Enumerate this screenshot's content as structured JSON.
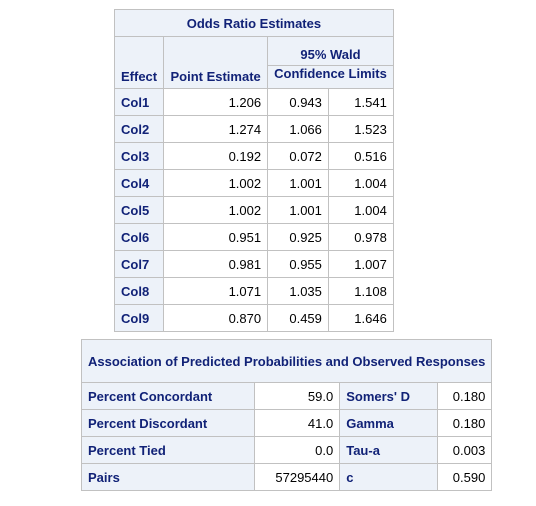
{
  "odds_ratio": {
    "title": "Odds Ratio Estimates",
    "headers": {
      "effect": "Effect",
      "point_estimate": "Point Estimate",
      "wald_line1": "95% Wald",
      "wald_line2": "Confidence Limits"
    },
    "rows": [
      {
        "effect": "Col1",
        "point": "1.206",
        "lower": "0.943",
        "upper": "1.541"
      },
      {
        "effect": "Col2",
        "point": "1.274",
        "lower": "1.066",
        "upper": "1.523"
      },
      {
        "effect": "Col3",
        "point": "0.192",
        "lower": "0.072",
        "upper": "0.516"
      },
      {
        "effect": "Col4",
        "point": "1.002",
        "lower": "1.001",
        "upper": "1.004"
      },
      {
        "effect": "Col5",
        "point": "1.002",
        "lower": "1.001",
        "upper": "1.004"
      },
      {
        "effect": "Col6",
        "point": "0.951",
        "lower": "0.925",
        "upper": "0.978"
      },
      {
        "effect": "Col7",
        "point": "0.981",
        "lower": "0.955",
        "upper": "1.007"
      },
      {
        "effect": "Col8",
        "point": "1.071",
        "lower": "1.035",
        "upper": "1.108"
      },
      {
        "effect": "Col9",
        "point": "0.870",
        "lower": "0.459",
        "upper": "1.646"
      }
    ]
  },
  "association": {
    "title": "Association of Predicted Probabilities and Observed Responses",
    "rows": [
      {
        "label1": "Percent Concordant",
        "value1": "59.0",
        "label2": "Somers' D",
        "value2": "0.180"
      },
      {
        "label1": "Percent Discordant",
        "value1": "41.0",
        "label2": "Gamma",
        "value2": "0.180"
      },
      {
        "label1": "Percent Tied",
        "value1": "0.0",
        "label2": "Tau-a",
        "value2": "0.003"
      },
      {
        "label1": "Pairs",
        "value1": "57295440",
        "label2": "c",
        "value2": "0.590"
      }
    ]
  },
  "colors": {
    "header_bg": "#edf2f9",
    "header_text": "#112277",
    "border": "#c1c1c1"
  }
}
